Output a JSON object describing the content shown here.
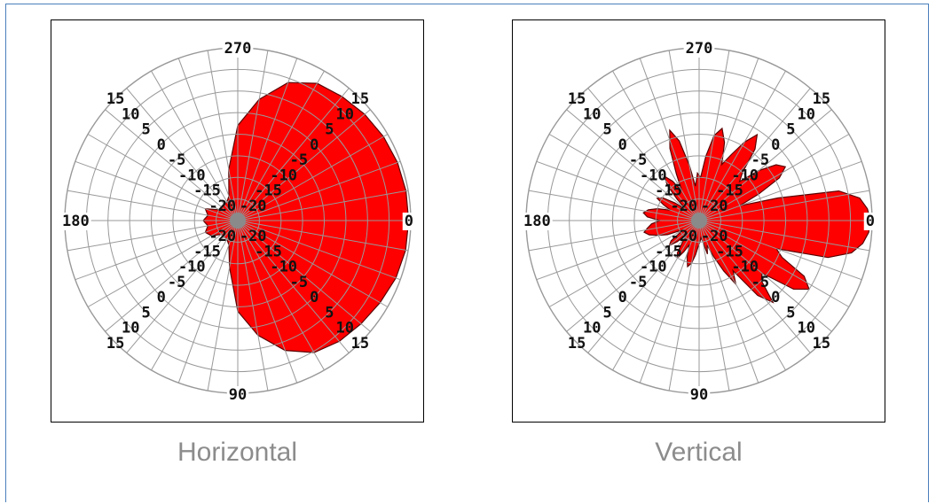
{
  "chart_data": [
    {
      "type": "polar",
      "title": "Horizontal",
      "angle_labels": {
        "a0": "0",
        "a90": "90",
        "a180": "180",
        "a270": "270"
      },
      "radial_ticks": [
        "-20",
        "-15",
        "-10",
        "-5",
        "0",
        "5",
        "10",
        "15"
      ],
      "radial_range": [
        -25,
        15
      ],
      "fill_color": "#ff0000",
      "grid_color": "#999999",
      "pattern": {
        "angles_deg": [
          0,
          10,
          20,
          30,
          40,
          50,
          60,
          70,
          80,
          90,
          100,
          110,
          120,
          130,
          140,
          150,
          160,
          170,
          180,
          190,
          200,
          210,
          220,
          230,
          240,
          250,
          260,
          270,
          280,
          290,
          300,
          310,
          320,
          330,
          340,
          350
        ],
        "gain_db": [
          14.5,
          14.4,
          13.9,
          13.0,
          12.2,
          11.5,
          10.3,
          7.0,
          2.0,
          -4.0,
          -14.0,
          -19.0,
          -20.0,
          -20.0,
          -20.0,
          -18.0,
          -17.0,
          -18.0,
          -17.0,
          -18.0,
          -17.0,
          -20.0,
          -20.0,
          -20.0,
          -20.0,
          -19.0,
          -13.0,
          -3.0,
          3.5,
          9.0,
          11.7,
          12.5,
          13.3,
          13.9,
          14.3,
          14.5
        ]
      }
    },
    {
      "type": "polar",
      "title": "Vertical",
      "angle_labels": {
        "a0": "0",
        "a90": "90",
        "a180": "180",
        "a270": "270"
      },
      "radial_ticks": [
        "-20",
        "-15",
        "-10",
        "-5",
        "0",
        "5",
        "10",
        "15"
      ],
      "radial_range": [
        -25,
        15
      ],
      "fill_color": "#ff0000",
      "grid_color": "#999999",
      "pattern": {
        "angles_deg": [
          0,
          4,
          8,
          12,
          16,
          20,
          24,
          28,
          32,
          36,
          40,
          44,
          48,
          52,
          56,
          60,
          64,
          68,
          72,
          76,
          80,
          84,
          88,
          92,
          96,
          100,
          104,
          108,
          112,
          116,
          120,
          124,
          128,
          132,
          136,
          140,
          144,
          148,
          152,
          156,
          160,
          164,
          168,
          172,
          176,
          180,
          184,
          188,
          192,
          196,
          200,
          204,
          208,
          212,
          216,
          220,
          224,
          228,
          232,
          236,
          240,
          244,
          248,
          252,
          256,
          260,
          264,
          268,
          272,
          276,
          280,
          284,
          288,
          292,
          296,
          300,
          304,
          308,
          312,
          316,
          320,
          324,
          328,
          332,
          336,
          340,
          344,
          348,
          352,
          356
        ],
        "gain_db": [
          14.6,
          14.3,
          13.2,
          11.0,
          6.0,
          -6.0,
          -4.0,
          2.5,
          5.0,
          2.0,
          -6.0,
          -5.0,
          0.5,
          -3.0,
          -11.0,
          -8.0,
          -12.0,
          -16.0,
          -19.0,
          -17.0,
          -20.0,
          -21.0,
          -20.0,
          -19.0,
          -17.0,
          -15.0,
          -14.0,
          -16.0,
          -19.0,
          -17.0,
          -15.0,
          -16.0,
          -19.0,
          -21.0,
          -18.0,
          -16.0,
          -17.0,
          -20.0,
          -20.0,
          -17.0,
          -15.0,
          -13.0,
          -12.0,
          -13.0,
          -14.0,
          -16.0,
          -13.0,
          -12.0,
          -13.0,
          -15.0,
          -18.0,
          -16.0,
          -14.0,
          -15.0,
          -18.0,
          -21.0,
          -18.0,
          -14.0,
          -12.0,
          -14.0,
          -17.0,
          -13.0,
          -7.0,
          -3.0,
          -6.0,
          -12.0,
          -17.0,
          -14.0,
          -15.0,
          -10.0,
          -5.0,
          -3.0,
          -6.0,
          -11.0,
          -8.0,
          -4.0,
          -1.0,
          -4.0,
          -10.0,
          -12.0,
          -7.0,
          -3.0,
          -1.5,
          -4.0,
          -10.0,
          -15.0,
          -6.0,
          8.0,
          12.5,
          14.0
        ]
      }
    }
  ]
}
